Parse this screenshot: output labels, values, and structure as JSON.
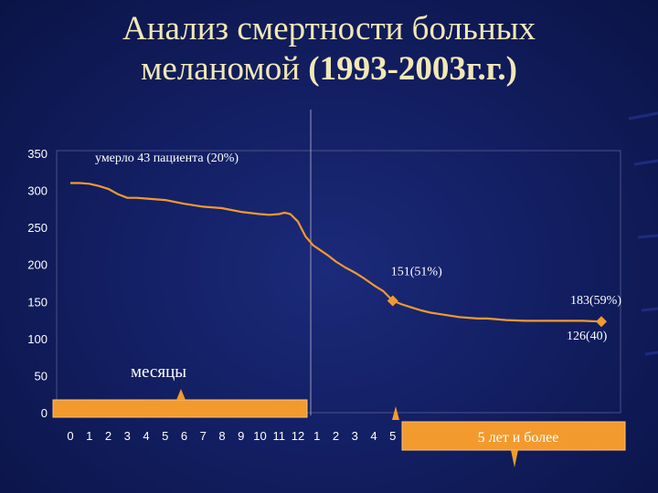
{
  "title": {
    "line1": "Анализ смертности больных",
    "line2_regular": "меланомой ",
    "line2_bold": "(1993-2003г.г.)"
  },
  "chart_data": {
    "type": "line",
    "ylim": [
      0,
      350
    ],
    "yticks": [
      0,
      50,
      100,
      150,
      200,
      250,
      300,
      350
    ],
    "categories": [
      "0",
      "1",
      "2",
      "3",
      "4",
      "5",
      "6",
      "7",
      "8",
      "9",
      "10",
      "11",
      "12",
      "1",
      "2",
      "3",
      "4",
      "5"
    ],
    "series": [
      {
        "x": [
          0,
          0.5,
          1,
          1.5,
          2,
          2.5,
          3,
          3.5,
          4,
          5,
          6,
          7,
          8,
          9,
          10,
          10.5,
          11,
          11.3,
          11.6,
          12,
          12.4,
          12.8,
          13.2,
          13.6,
          14,
          14.5,
          15,
          15.5,
          16,
          16.5,
          17,
          17.5,
          18,
          18.5,
          19,
          19.5,
          20,
          20.5,
          21,
          21.5,
          22,
          23,
          24,
          25,
          26,
          27,
          28
        ],
        "y": [
          310,
          310,
          309,
          306,
          302,
          295,
          290,
          290,
          289,
          287,
          282,
          278,
          276,
          271,
          268,
          267,
          268,
          270,
          268,
          258,
          238,
          226,
          219,
          212,
          204,
          196,
          189,
          181,
          172,
          164,
          151,
          146,
          142,
          138,
          135,
          133,
          131,
          129,
          128,
          127,
          127,
          125,
          124,
          124,
          124,
          124,
          123
        ],
        "color": "#f29a2e"
      }
    ],
    "markers": [
      {
        "x": 17,
        "y": 151,
        "label": "151(51%)"
      },
      {
        "x": 28,
        "y": 123,
        "label": "183(59%)"
      }
    ],
    "annotations": {
      "top_note": "умерло 43 пациента (20%)",
      "side_label": "126(40)",
      "months_label": "месяцы",
      "years_label": "5 лет и более"
    },
    "grid": false,
    "colors": {
      "line": "#f29a2e",
      "marker": "#f29a2e",
      "bracket": "#f29a2e",
      "axis": "#7f7fa0",
      "title": "#f2e8b6"
    }
  }
}
